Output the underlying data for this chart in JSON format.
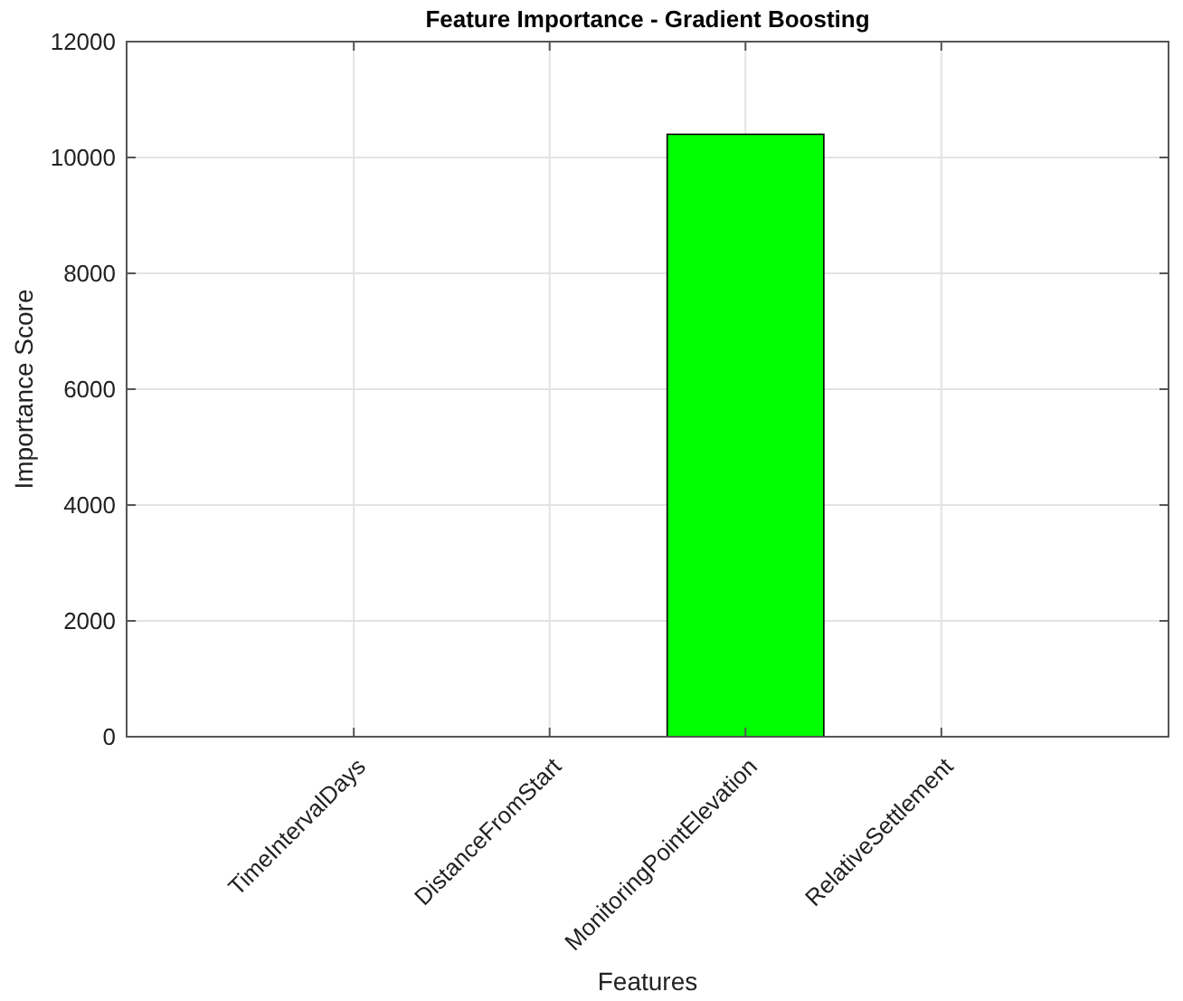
{
  "chart_data": {
    "type": "bar",
    "title": "Feature Importance - Gradient Boosting",
    "xlabel": "Features",
    "ylabel": "Importance Score",
    "categories": [
      "TimeIntervalDays",
      "DistanceFromStart",
      "MonitoringPointElevation",
      "RelativeSettlement"
    ],
    "values": [
      0,
      0,
      10400,
      0
    ],
    "color": "#00ff00",
    "ylim": [
      0,
      12000
    ],
    "yticks": [
      0,
      2000,
      4000,
      6000,
      8000,
      10000,
      12000
    ],
    "grid": true
  }
}
